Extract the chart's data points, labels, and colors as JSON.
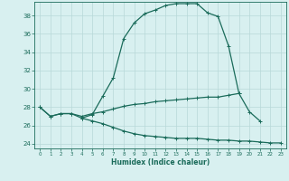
{
  "xlabel": "Humidex (Indice chaleur)",
  "x": [
    0,
    1,
    2,
    3,
    4,
    5,
    6,
    7,
    8,
    9,
    10,
    11,
    12,
    13,
    14,
    15,
    16,
    17,
    18,
    19,
    20,
    21,
    22,
    23
  ],
  "line1": [
    28,
    27,
    27.3,
    27.3,
    26.8,
    27.2,
    29.2,
    31.2,
    35.5,
    37.2,
    38.2,
    38.6,
    39.1,
    39.3,
    39.3,
    39.3,
    38.3,
    37.9,
    34.7,
    29.5,
    null,
    null,
    null,
    null
  ],
  "line2": [
    28,
    27,
    27.3,
    27.3,
    27.0,
    27.3,
    27.5,
    27.8,
    28.1,
    28.3,
    28.4,
    28.6,
    28.7,
    28.8,
    28.9,
    29.0,
    29.1,
    29.1,
    29.3,
    29.5,
    27.5,
    26.5,
    null,
    null
  ],
  "line3": [
    null,
    null,
    null,
    null,
    26.8,
    26.5,
    26.2,
    25.8,
    25.4,
    25.1,
    24.9,
    24.8,
    24.7,
    24.6,
    24.6,
    24.6,
    24.5,
    24.4,
    24.4,
    24.3,
    24.3,
    24.2,
    24.1,
    24.1
  ],
  "line_color": "#1a6b5a",
  "bg_color": "#d8f0f0",
  "grid_color": "#b8d8d8",
  "ylim": [
    23.5,
    39.5
  ],
  "xlim": [
    -0.5,
    23.5
  ],
  "yticks": [
    24,
    26,
    28,
    30,
    32,
    34,
    36,
    38
  ],
  "xticks": [
    0,
    1,
    2,
    3,
    4,
    5,
    6,
    7,
    8,
    9,
    10,
    11,
    12,
    13,
    14,
    15,
    16,
    17,
    18,
    19,
    20,
    21,
    22,
    23
  ]
}
